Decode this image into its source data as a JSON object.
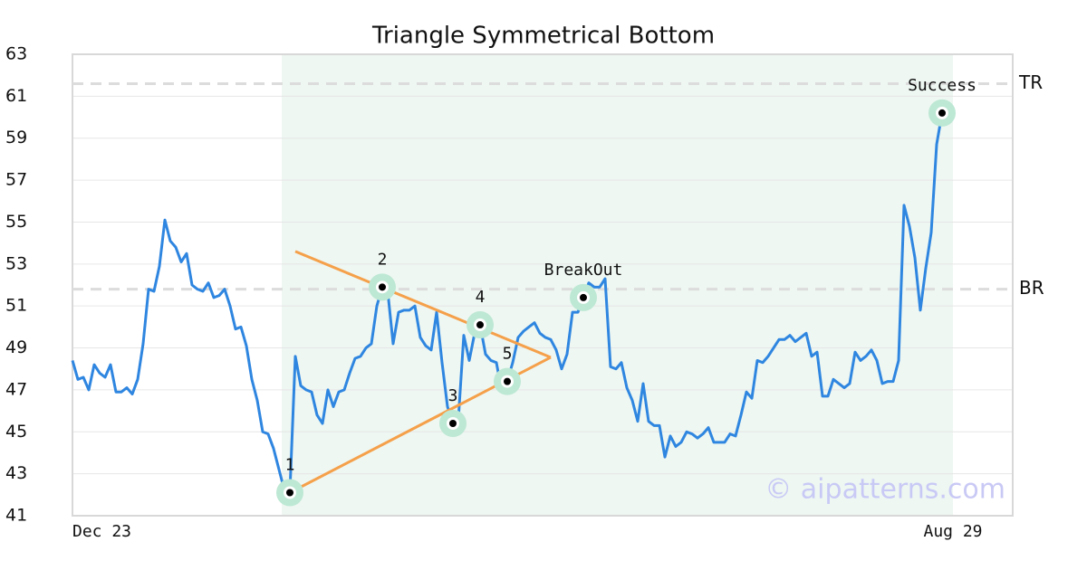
{
  "chart_data": {
    "type": "line",
    "title": "Triangle Symmetrical Bottom",
    "color": "#2f86e0",
    "values": [
      48.4,
      47.5,
      47.6,
      47.0,
      48.2,
      47.8,
      47.6,
      48.2,
      46.9,
      46.9,
      47.1,
      46.8,
      47.5,
      49.2,
      51.8,
      51.7,
      52.9,
      55.1,
      54.1,
      53.8,
      53.1,
      53.5,
      52.0,
      51.8,
      51.7,
      52.1,
      51.4,
      51.5,
      51.8,
      51.0,
      49.9,
      50.0,
      49.1,
      47.5,
      46.5,
      45.0,
      44.9,
      44.2,
      43.2,
      42.2,
      42.1,
      48.6,
      47.2,
      47.0,
      46.9,
      45.8,
      45.4,
      47.0,
      46.2,
      46.9,
      47.0,
      47.8,
      48.5,
      48.6,
      49.0,
      49.2,
      51.0,
      51.9,
      51.7,
      49.2,
      50.7,
      50.8,
      50.8,
      51.0,
      49.5,
      49.1,
      48.9,
      50.7,
      48.3,
      46.2,
      45.4,
      45.6,
      49.6,
      48.4,
      49.7,
      50.1,
      48.7,
      48.4,
      48.3,
      46.9,
      47.4,
      48.3,
      49.5,
      49.8,
      50.0,
      50.2,
      49.7,
      49.5,
      49.4,
      48.9,
      48.0,
      48.7,
      50.7,
      50.7,
      51.4,
      52.1,
      51.9,
      51.9,
      52.3,
      48.1,
      48.0,
      48.3,
      47.1,
      46.5,
      45.5,
      47.3,
      45.5,
      45.3,
      45.3,
      43.8,
      44.8,
      44.3,
      44.5,
      45.0,
      44.9,
      44.7,
      44.9,
      45.2,
      44.5,
      44.5,
      44.5,
      44.9,
      44.8,
      45.8,
      46.9,
      46.6,
      48.4,
      48.3,
      48.6,
      49.0,
      49.4,
      49.4,
      49.6,
      49.3,
      49.5,
      49.7,
      48.6,
      48.8,
      46.7,
      46.7,
      47.5,
      47.3,
      47.1,
      47.3,
      48.8,
      48.4,
      48.6,
      48.9,
      48.4,
      47.3,
      47.4,
      47.4,
      48.4,
      55.8,
      54.8,
      53.3,
      50.8,
      52.8,
      54.5,
      58.7,
      60.2,
      60.1,
      60.1
    ],
    "xlim": [
      0,
      173
    ],
    "xticks": [
      {
        "value": 0,
        "label": "Dec 23"
      },
      {
        "value": 162,
        "label": "Aug 29"
      }
    ],
    "ylim": [
      41,
      63
    ],
    "yticks": [
      41,
      43,
      45,
      47,
      49,
      51,
      53,
      55,
      57,
      59,
      61,
      63
    ],
    "grid": true,
    "shade": {
      "x": [
        38.5,
        162
      ],
      "color": "#eef7f2"
    },
    "levels": [
      {
        "label": "TR",
        "value": 61.6
      },
      {
        "label": "BR",
        "value": 51.8
      }
    ],
    "trendlines": {
      "color": "#f5a04a",
      "lines": [
        {
          "x": [
            40,
            88
          ],
          "values": [
            42.1,
            48.55
          ]
        },
        {
          "x": [
            41,
            88
          ],
          "values": [
            53.6,
            48.55
          ]
        }
      ]
    },
    "markers": [
      {
        "label": "1",
        "index": 40
      },
      {
        "label": "2",
        "index": 57
      },
      {
        "label": "3",
        "index": 70
      },
      {
        "label": "4",
        "index": 75
      },
      {
        "label": "5",
        "index": 80
      },
      {
        "label": "BreakOut",
        "index": 94
      },
      {
        "label": "Success",
        "index": 160
      }
    ],
    "watermark": "© aipatterns.com"
  }
}
